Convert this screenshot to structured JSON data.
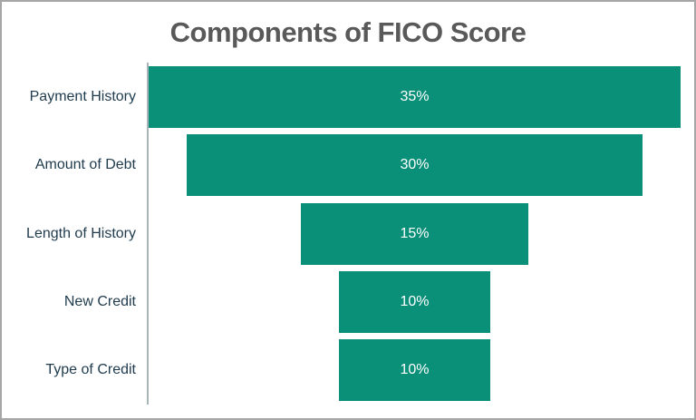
{
  "chart_data": {
    "type": "bar",
    "variant": "horizontal-centered-funnel",
    "title": "Components of FICO Score",
    "categories": [
      "Payment History",
      "Amount of Debt",
      "Length of History",
      "New Credit",
      "Type of Credit"
    ],
    "values": [
      35,
      30,
      15,
      10,
      10
    ],
    "data_labels": [
      "35%",
      "30%",
      "15%",
      "10%",
      "10%"
    ],
    "xlim": [
      0,
      35
    ],
    "grid": false,
    "legend": "none",
    "axis": "single-vertical-left",
    "colors": {
      "bar": "#0a8f78",
      "title_text": "#595959",
      "category_text": "#1f3b4d",
      "data_label_text": "#ffffff",
      "axis_line": "#a9b4b8",
      "frame_border": "#a6a6a6",
      "background": "#ffffff"
    }
  }
}
